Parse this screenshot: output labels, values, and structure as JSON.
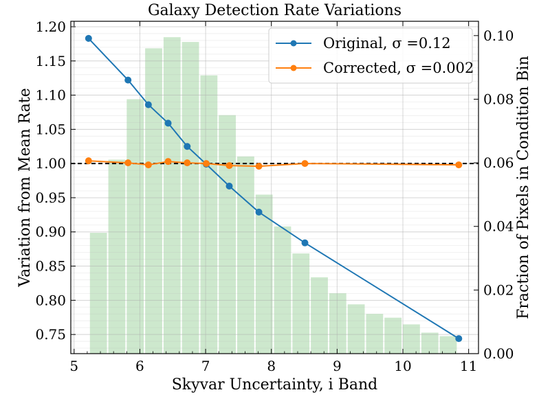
{
  "chart_data": {
    "type": "bar+line",
    "title": "Galaxy Detection Rate Variations",
    "xlabel": "Skyvar Uncertainty, i Band",
    "ylabel": "Variation from Mean Rate",
    "y2label": "Fraction of Pixels in Condition Bin",
    "xlim": [
      4.95,
      11.15
    ],
    "ylim": [
      0.722,
      1.208
    ],
    "y2lim": [
      0.0,
      0.1045
    ],
    "xticks": [
      5,
      6,
      7,
      8,
      9,
      10,
      11
    ],
    "xtick_labels": [
      "5",
      "6",
      "7",
      "8",
      "9",
      "10",
      "11"
    ],
    "yticks": [
      0.75,
      0.8,
      0.85,
      0.9,
      0.95,
      1.0,
      1.05,
      1.1,
      1.15,
      1.2
    ],
    "ytick_labels": [
      "0.75",
      "0.80",
      "0.85",
      "0.90",
      "0.95",
      "1.00",
      "1.05",
      "1.10",
      "1.15",
      "1.20"
    ],
    "y2ticks": [
      0.0,
      0.02,
      0.04,
      0.06,
      0.08,
      0.1
    ],
    "y2tick_labels": [
      "0.00",
      "0.02",
      "0.04",
      "0.06",
      "0.08",
      "0.10"
    ],
    "grid": true,
    "reference_line": {
      "y": 1.0,
      "style": "dashed",
      "color": "#000000"
    },
    "histogram": {
      "color": "#2ca02c",
      "bin_edges": [
        5.23,
        5.51,
        5.79,
        6.07,
        6.35,
        6.63,
        6.91,
        7.19,
        7.47,
        7.75,
        8.03,
        8.31,
        8.59,
        8.87,
        9.15,
        9.43,
        9.71,
        9.99,
        10.27,
        10.55,
        10.83
      ],
      "values": [
        0.038,
        0.061,
        0.08,
        0.096,
        0.0995,
        0.098,
        0.0875,
        0.075,
        0.062,
        0.05,
        0.04,
        0.0315,
        0.024,
        0.019,
        0.0155,
        0.0125,
        0.0113,
        0.0092,
        0.0066,
        0.0055
      ]
    },
    "series": [
      {
        "name": "Original, σ =0.12",
        "color": "#1f77b4",
        "x": [
          5.22,
          5.82,
          6.13,
          6.43,
          6.72,
          7.01,
          7.36,
          7.81,
          8.51,
          10.85
        ],
        "y": [
          1.183,
          1.122,
          1.086,
          1.059,
          1.025,
          0.999,
          0.967,
          0.929,
          0.884,
          0.744
        ]
      },
      {
        "name": "Corrected, σ =0.002",
        "color": "#ff7f0e",
        "x": [
          5.22,
          5.82,
          6.13,
          6.43,
          6.72,
          7.01,
          7.36,
          7.81,
          8.51,
          10.85
        ],
        "y": [
          1.004,
          1.001,
          0.998,
          1.003,
          1.001,
          1.0,
          0.997,
          0.996,
          1.0,
          0.998
        ]
      }
    ],
    "legend": {
      "placement": "top-right",
      "entries": [
        "Original, σ =0.12",
        "Corrected, σ =0.002"
      ]
    }
  }
}
